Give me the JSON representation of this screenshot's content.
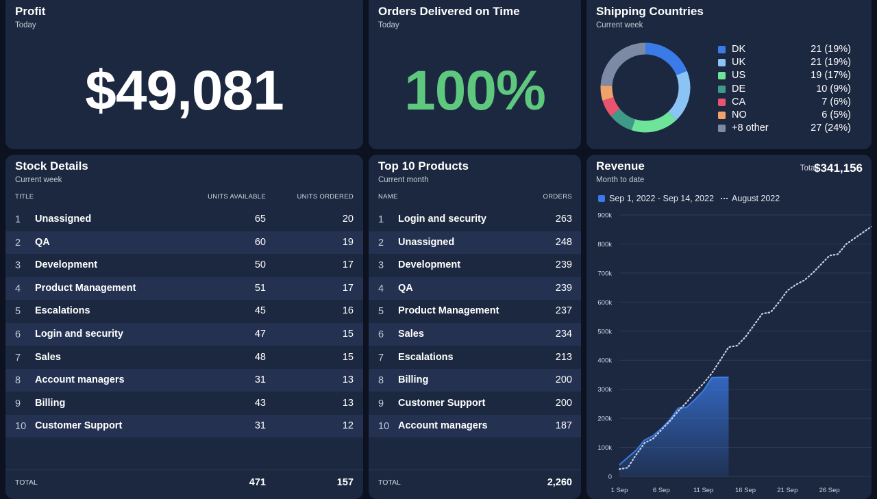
{
  "profit": {
    "title": "Profit",
    "subtitle": "Today",
    "value": "$49,081"
  },
  "orders": {
    "title": "Orders Delivered on Time",
    "subtitle": "Today",
    "value": "100%"
  },
  "shipping": {
    "title": "Shipping Countries",
    "subtitle": "Current week",
    "countries": [
      {
        "name": "DK",
        "value": "21 (19%)",
        "count": 21,
        "color": "#3b7be8"
      },
      {
        "name": "UK",
        "value": "21 (19%)",
        "count": 21,
        "color": "#8cc3f5"
      },
      {
        "name": "US",
        "value": "19 (17%)",
        "count": 19,
        "color": "#6ee39a"
      },
      {
        "name": "DE",
        "value": "10 (9%)",
        "count": 10,
        "color": "#3f9a8a"
      },
      {
        "name": "CA",
        "value": "7 (6%)",
        "count": 7,
        "color": "#e85470"
      },
      {
        "name": "NO",
        "value": "6 (5%)",
        "count": 6,
        "color": "#f0a26a"
      },
      {
        "name": "+8 other",
        "value": "27 (24%)",
        "count": 27,
        "color": "#7d8aa5"
      }
    ]
  },
  "stock": {
    "title": "Stock Details",
    "subtitle": "Current week",
    "columns": {
      "title": "TITLE",
      "available": "UNITS AVAILABLE",
      "ordered": "UNITS ORDERED"
    },
    "rows": [
      {
        "idx": "1",
        "name": "Unassigned",
        "available": "65",
        "ordered": "20"
      },
      {
        "idx": "2",
        "name": "QA",
        "available": "60",
        "ordered": "19"
      },
      {
        "idx": "3",
        "name": "Development",
        "available": "50",
        "ordered": "17"
      },
      {
        "idx": "4",
        "name": "Product Management",
        "available": "51",
        "ordered": "17"
      },
      {
        "idx": "5",
        "name": "Escalations",
        "available": "45",
        "ordered": "16"
      },
      {
        "idx": "6",
        "name": "Login and security",
        "available": "47",
        "ordered": "15"
      },
      {
        "idx": "7",
        "name": "Sales",
        "available": "48",
        "ordered": "15"
      },
      {
        "idx": "8",
        "name": "Account managers",
        "available": "31",
        "ordered": "13"
      },
      {
        "idx": "9",
        "name": "Billing",
        "available": "43",
        "ordered": "13"
      },
      {
        "idx": "10",
        "name": "Customer Support",
        "available": "31",
        "ordered": "12"
      }
    ],
    "total_label": "TOTAL",
    "total_available": "471",
    "total_ordered": "157"
  },
  "products": {
    "title": "Top 10 Products",
    "subtitle": "Current month",
    "columns": {
      "name": "NAME",
      "orders": "ORDERS"
    },
    "rows": [
      {
        "idx": "1",
        "name": "Login and security",
        "orders": "263"
      },
      {
        "idx": "2",
        "name": "Unassigned",
        "orders": "248"
      },
      {
        "idx": "3",
        "name": "Development",
        "orders": "239"
      },
      {
        "idx": "4",
        "name": "QA",
        "orders": "239"
      },
      {
        "idx": "5",
        "name": "Product Management",
        "orders": "237"
      },
      {
        "idx": "6",
        "name": "Sales",
        "orders": "234"
      },
      {
        "idx": "7",
        "name": "Escalations",
        "orders": "213"
      },
      {
        "idx": "8",
        "name": "Billing",
        "orders": "200"
      },
      {
        "idx": "9",
        "name": "Customer Support",
        "orders": "200"
      },
      {
        "idx": "10",
        "name": "Account managers",
        "orders": "187"
      }
    ],
    "total_label": "TOTAL",
    "total_orders": "2,260"
  },
  "revenue": {
    "title": "Revenue",
    "subtitle": "Month to date",
    "total_label": "Total",
    "total_value": "$341,156",
    "legend_current": "Sep 1, 2022 - Sep 14, 2022",
    "legend_previous": "August 2022"
  },
  "chart_data": {
    "type": "area",
    "title": "Revenue",
    "yticks": [
      "0",
      "100k",
      "200k",
      "300k",
      "400k",
      "500k",
      "600k",
      "700k",
      "800k",
      "900k"
    ],
    "ylim": [
      0,
      900000
    ],
    "xlim": [
      1,
      31
    ],
    "xticks": [
      {
        "day": 1,
        "label": "1 Sep"
      },
      {
        "day": 6,
        "label": "6 Sep"
      },
      {
        "day": 11,
        "label": "11 Sep"
      },
      {
        "day": 16,
        "label": "16 Sep"
      },
      {
        "day": 21,
        "label": "21 Sep"
      },
      {
        "day": 26,
        "label": "26 Sep"
      }
    ],
    "grid": true,
    "series": [
      {
        "name": "Sep 1, 2022 - Sep 14, 2022",
        "style": "area",
        "color": "#3b7be8",
        "x": [
          1,
          2,
          3,
          4,
          5,
          6,
          7,
          8,
          9,
          10,
          11,
          12,
          13,
          14
        ],
        "y": [
          40000,
          65000,
          90000,
          125000,
          140000,
          165000,
          195000,
          235000,
          238000,
          265000,
          295000,
          340000,
          341156,
          341156
        ]
      },
      {
        "name": "August 2022",
        "style": "dotted",
        "color": "#c9d2e3",
        "x": [
          1,
          2,
          3,
          4,
          5,
          6,
          7,
          8,
          9,
          10,
          11,
          12,
          13,
          14,
          15,
          16,
          17,
          18,
          19,
          20,
          21,
          22,
          23,
          24,
          25,
          26,
          27,
          28,
          29,
          30,
          31
        ],
        "y": [
          25000,
          30000,
          75000,
          115000,
          130000,
          160000,
          190000,
          225000,
          255000,
          290000,
          320000,
          355000,
          400000,
          445000,
          450000,
          480000,
          520000,
          560000,
          565000,
          600000,
          640000,
          660000,
          675000,
          700000,
          730000,
          760000,
          765000,
          800000,
          820000,
          840000,
          860000
        ]
      }
    ]
  }
}
